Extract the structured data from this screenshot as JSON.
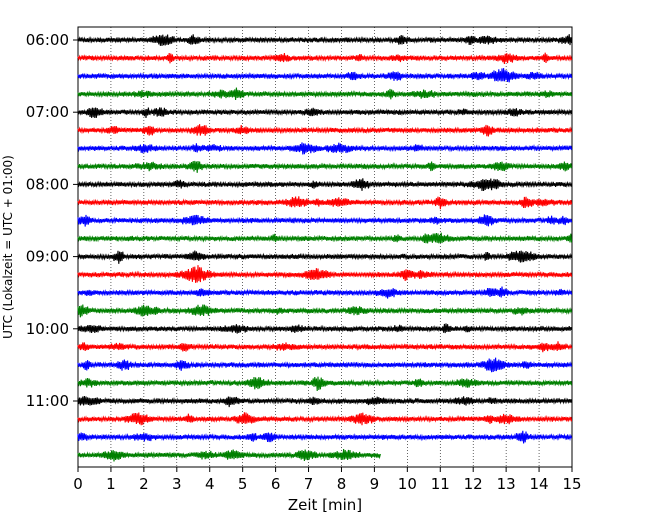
{
  "chart_data": {
    "type": "line",
    "xlabel": "Zeit  [min]",
    "ylabel": "UTC (Lokalzeit = UTC + 01:00)",
    "xlim": [
      0,
      15
    ],
    "xticks": [
      "0",
      "1",
      "2",
      "3",
      "4",
      "5",
      "6",
      "7",
      "8",
      "9",
      "10",
      "11",
      "12",
      "13",
      "14",
      "15"
    ],
    "yticks": [
      "06:00",
      "07:00",
      "08:00",
      "09:00",
      "10:00",
      "11:00"
    ],
    "grid": "vertical-dotted",
    "trace_interval_min": 15,
    "series": [
      {
        "start": "06:00",
        "color": "#000000",
        "end_min": 15
      },
      {
        "start": "06:15",
        "color": "#ff0000",
        "end_min": 15
      },
      {
        "start": "06:30",
        "color": "#0000ff",
        "end_min": 15
      },
      {
        "start": "06:45",
        "color": "#008000",
        "end_min": 15
      },
      {
        "start": "07:00",
        "color": "#000000",
        "end_min": 15
      },
      {
        "start": "07:15",
        "color": "#ff0000",
        "end_min": 15
      },
      {
        "start": "07:30",
        "color": "#0000ff",
        "end_min": 15
      },
      {
        "start": "07:45",
        "color": "#008000",
        "end_min": 15
      },
      {
        "start": "08:00",
        "color": "#000000",
        "end_min": 15
      },
      {
        "start": "08:15",
        "color": "#ff0000",
        "end_min": 15
      },
      {
        "start": "08:30",
        "color": "#0000ff",
        "end_min": 15
      },
      {
        "start": "08:45",
        "color": "#008000",
        "end_min": 15
      },
      {
        "start": "09:00",
        "color": "#000000",
        "end_min": 15
      },
      {
        "start": "09:15",
        "color": "#ff0000",
        "end_min": 15
      },
      {
        "start": "09:30",
        "color": "#0000ff",
        "end_min": 15
      },
      {
        "start": "09:45",
        "color": "#008000",
        "end_min": 15
      },
      {
        "start": "10:00",
        "color": "#000000",
        "end_min": 15
      },
      {
        "start": "10:15",
        "color": "#ff0000",
        "end_min": 15
      },
      {
        "start": "10:30",
        "color": "#0000ff",
        "end_min": 15
      },
      {
        "start": "10:45",
        "color": "#008000",
        "end_min": 15
      },
      {
        "start": "11:00",
        "color": "#000000",
        "end_min": 15
      },
      {
        "start": "11:15",
        "color": "#ff0000",
        "end_min": 15
      },
      {
        "start": "11:30",
        "color": "#0000ff",
        "end_min": 15
      },
      {
        "start": "11:45",
        "color": "#008000",
        "end_min": 9.2
      }
    ]
  }
}
